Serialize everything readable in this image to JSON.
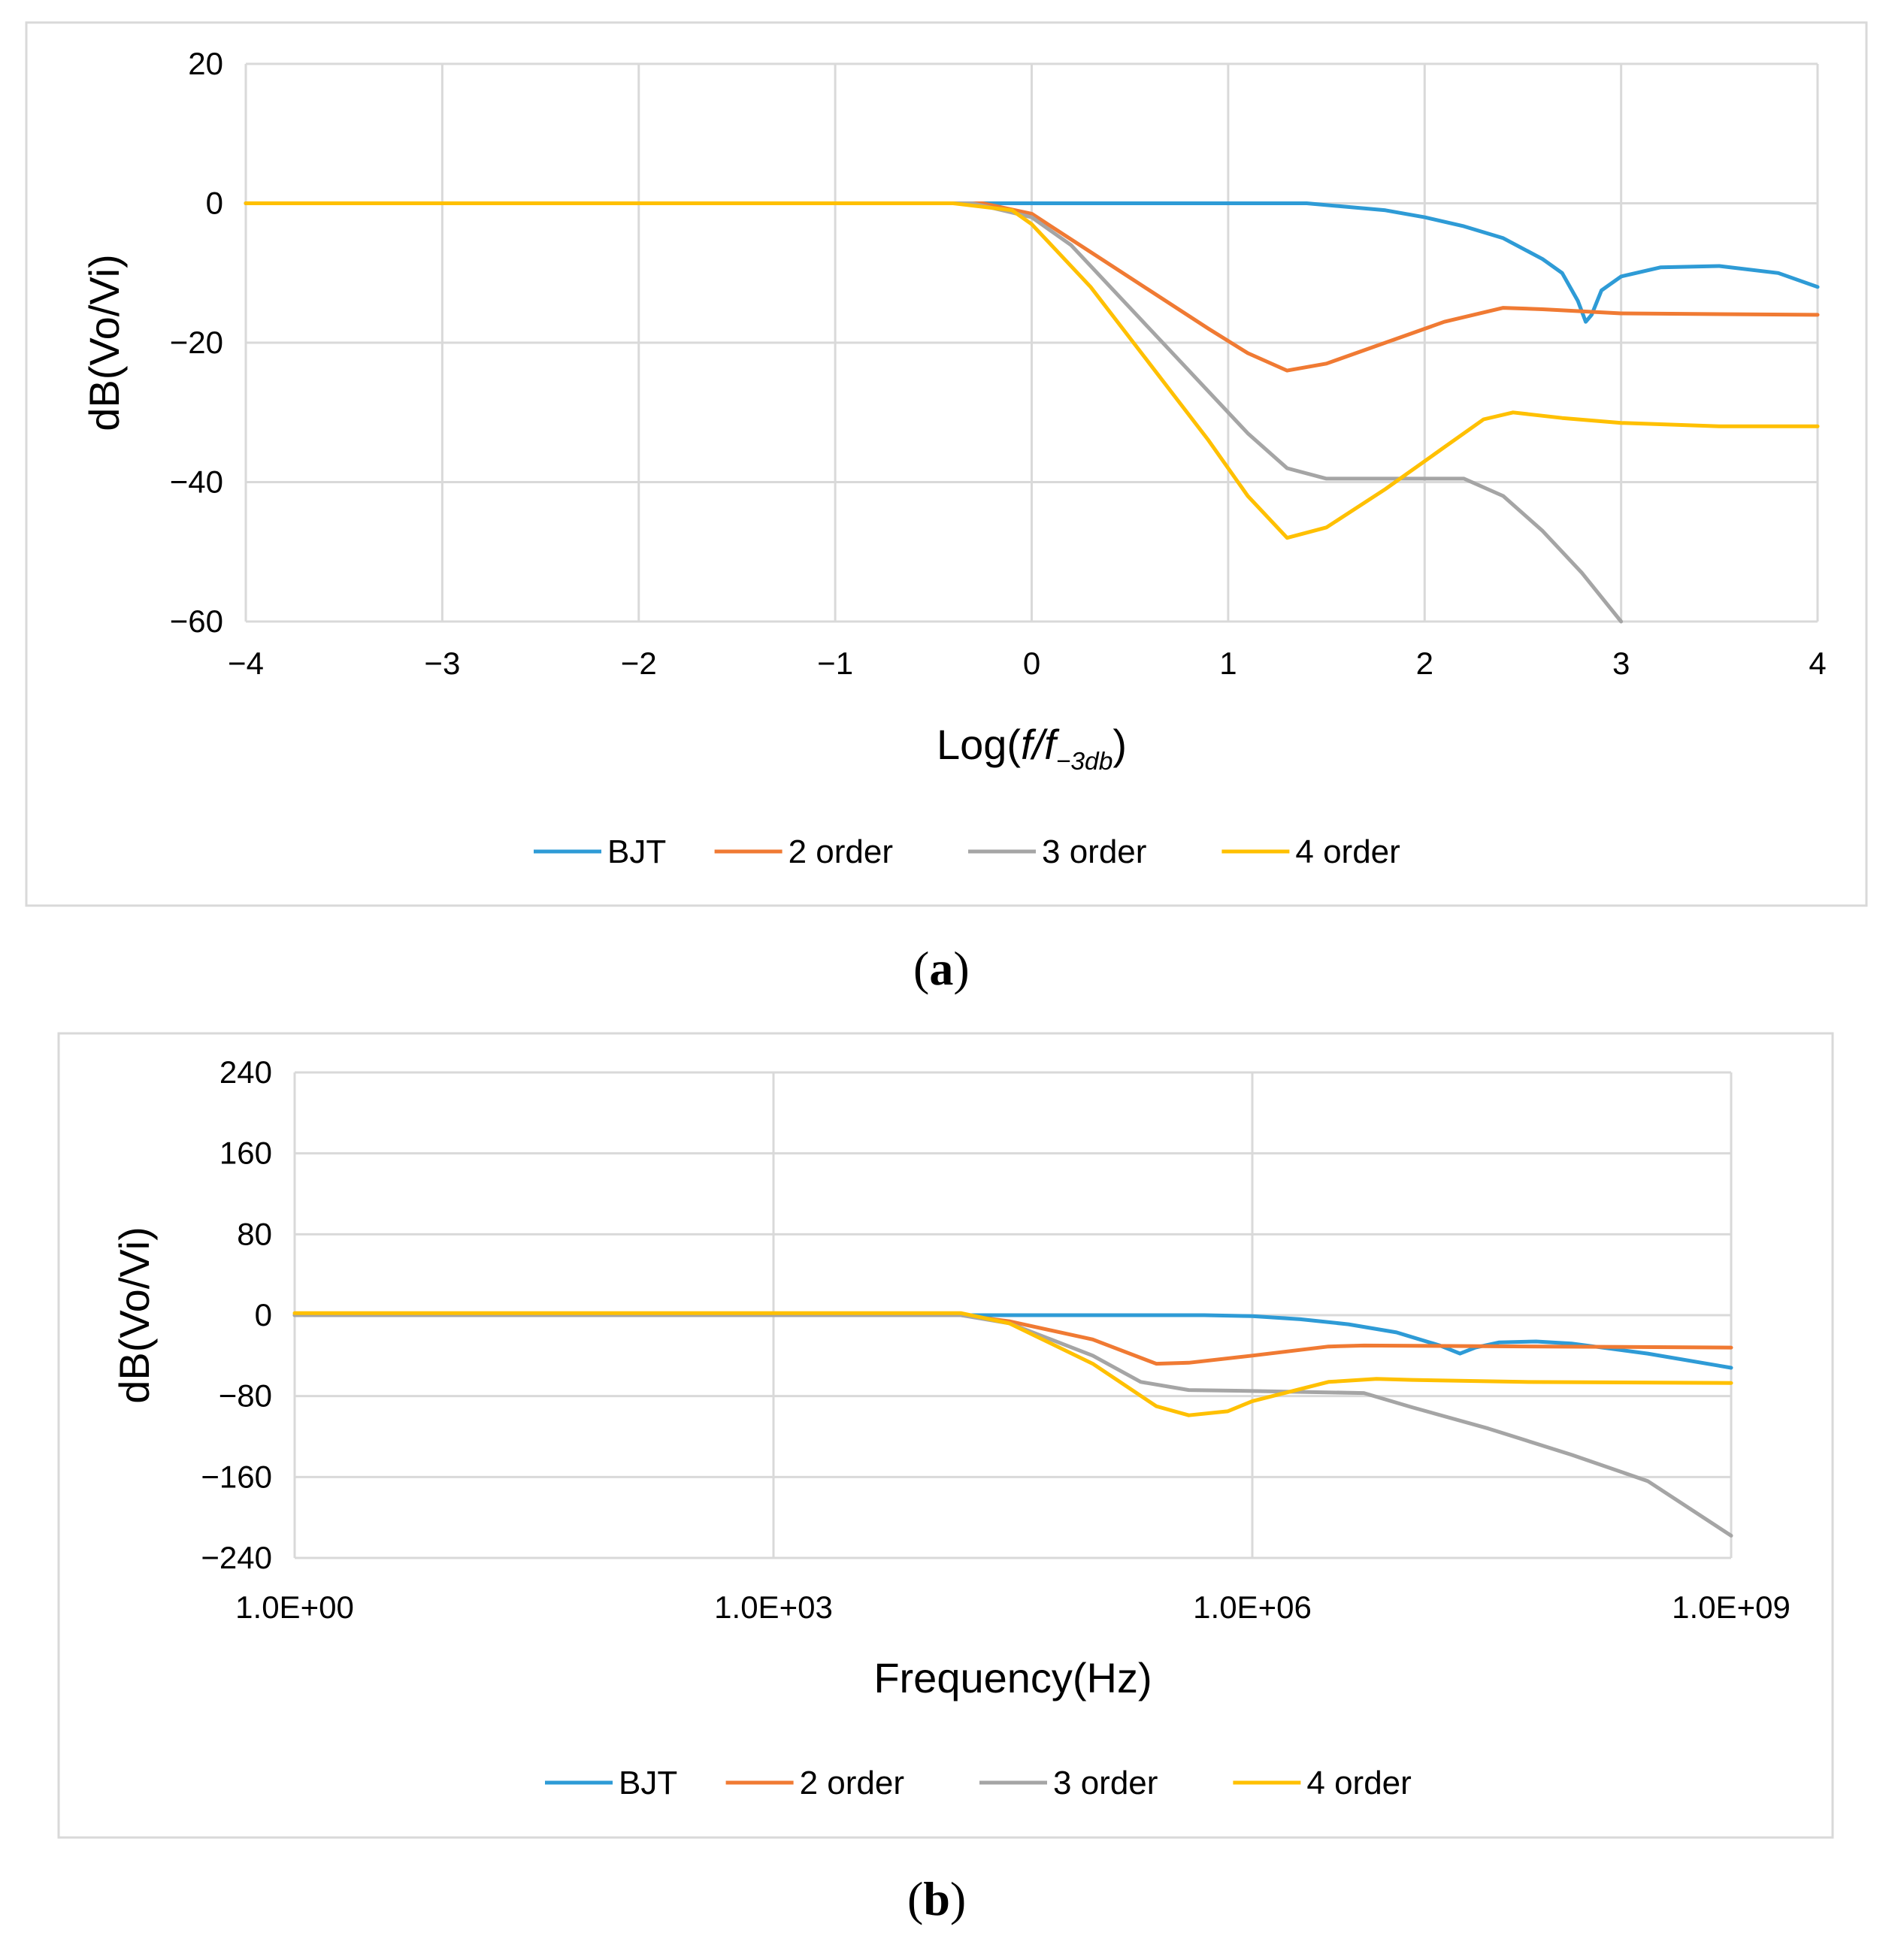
{
  "colors": {
    "bjt": "#2E9BD6",
    "order2": "#F07A33",
    "order3": "#A5A5A5",
    "order4": "#FFC000",
    "grid": "#D9D9D9",
    "frame": "#D9D9D9"
  },
  "captions": {
    "a": "a",
    "b": "b"
  },
  "chart_data": [
    {
      "id": "a",
      "type": "line",
      "title": "",
      "xlabel": {
        "main": "Log(",
        "f1": "f",
        "slash": "/",
        "f2": "f",
        "sub": "−3db",
        "close": ")"
      },
      "ylabel": "dB(Vo/Vi)",
      "xlim": [
        -4,
        4
      ],
      "ylim": [
        -60,
        20
      ],
      "xticks": [
        -4,
        -3,
        -2,
        -1,
        0,
        1,
        2,
        3,
        4
      ],
      "xtick_labels": [
        "−4",
        "−3",
        "−2",
        "−1",
        "0",
        "1",
        "2",
        "3",
        "4"
      ],
      "yticks": [
        20,
        0,
        -20,
        -40,
        -60
      ],
      "ytick_labels": [
        "20",
        "0",
        "−20",
        "−40",
        "−60"
      ],
      "grid": true,
      "legend": "bottom",
      "series": [
        {
          "name": "BJT",
          "color_key": "bjt",
          "points": [
            [
              -4,
              0
            ],
            [
              1.4,
              0
            ],
            [
              1.8,
              -1
            ],
            [
              2.0,
              -2
            ],
            [
              2.2,
              -3.3
            ],
            [
              2.4,
              -5
            ],
            [
              2.6,
              -8
            ],
            [
              2.7,
              -10
            ],
            [
              2.78,
              -14
            ],
            [
              2.82,
              -17
            ],
            [
              2.85,
              -16
            ],
            [
              2.9,
              -12.5
            ],
            [
              3.0,
              -10.5
            ],
            [
              3.2,
              -9.2
            ],
            [
              3.5,
              -9
            ],
            [
              3.8,
              -10
            ],
            [
              4,
              -12
            ]
          ]
        },
        {
          "name": "2 order",
          "color_key": "order2",
          "points": [
            [
              -4,
              0
            ],
            [
              -0.25,
              0
            ],
            [
              0,
              -1.5
            ],
            [
              0.3,
              -7
            ],
            [
              0.6,
              -12.5
            ],
            [
              0.9,
              -18
            ],
            [
              1.1,
              -21.5
            ],
            [
              1.3,
              -24
            ],
            [
              1.5,
              -23
            ],
            [
              1.8,
              -20
            ],
            [
              2.1,
              -17
            ],
            [
              2.4,
              -15
            ],
            [
              2.6,
              -15.2
            ],
            [
              3.0,
              -15.8
            ],
            [
              4,
              -16
            ]
          ]
        },
        {
          "name": "3 order",
          "color_key": "order3",
          "points": [
            [
              -4,
              0
            ],
            [
              -0.3,
              0
            ],
            [
              0,
              -2
            ],
            [
              0.2,
              -6
            ],
            [
              0.5,
              -15
            ],
            [
              0.8,
              -24
            ],
            [
              1.1,
              -33
            ],
            [
              1.3,
              -38
            ],
            [
              1.5,
              -39.5
            ],
            [
              2.2,
              -39.5
            ],
            [
              2.4,
              -42
            ],
            [
              2.6,
              -47
            ],
            [
              2.8,
              -53
            ],
            [
              3.0,
              -60
            ]
          ]
        },
        {
          "name": "4 order",
          "color_key": "order4",
          "points": [
            [
              -4,
              0
            ],
            [
              -0.4,
              0
            ],
            [
              -0.1,
              -1
            ],
            [
              0,
              -3
            ],
            [
              0.3,
              -12
            ],
            [
              0.6,
              -23
            ],
            [
              0.9,
              -34
            ],
            [
              1.1,
              -42
            ],
            [
              1.3,
              -48
            ],
            [
              1.5,
              -46.5
            ],
            [
              1.8,
              -41
            ],
            [
              2.1,
              -35
            ],
            [
              2.3,
              -31
            ],
            [
              2.45,
              -30
            ],
            [
              2.7,
              -30.8
            ],
            [
              3.0,
              -31.5
            ],
            [
              3.5,
              -32
            ],
            [
              4,
              -32
            ]
          ]
        }
      ]
    },
    {
      "id": "b",
      "type": "line",
      "title": "",
      "xlabel": "Frequency(Hz)",
      "ylabel": "dB(Vo/Vi)",
      "x_scale": "log",
      "xlim": [
        1,
        1000000000
      ],
      "ylim": [
        -240,
        240
      ],
      "xticks": [
        1,
        1000,
        1000000,
        1000000000
      ],
      "xtick_labels": [
        "1.0E+00",
        "1.0E+03",
        "1.0E+06",
        "1.0E+09"
      ],
      "yticks": [
        240,
        160,
        80,
        0,
        -80,
        -160,
        -240
      ],
      "ytick_labels": [
        "240",
        "160",
        "80",
        "0",
        "−80",
        "−160",
        "−240"
      ],
      "grid": true,
      "legend": "bottom",
      "series": [
        {
          "name": "BJT",
          "color_key": "bjt",
          "points": [
            [
              1,
              0
            ],
            [
              500000,
              0
            ],
            [
              1000000,
              -1
            ],
            [
              2000000,
              -4
            ],
            [
              4000000,
              -9
            ],
            [
              8000000,
              -17
            ],
            [
              15000000,
              -30
            ],
            [
              20000000,
              -38
            ],
            [
              25000000,
              -32
            ],
            [
              35000000,
              -27
            ],
            [
              60000000,
              -26
            ],
            [
              100000000,
              -28
            ],
            [
              300000000,
              -38
            ],
            [
              1000000000,
              -52
            ]
          ]
        },
        {
          "name": "2 order",
          "color_key": "order2",
          "points": [
            [
              1,
              0
            ],
            [
              15000,
              0
            ],
            [
              30000,
              -6
            ],
            [
              100000,
              -24
            ],
            [
              250000,
              -48
            ],
            [
              400000,
              -47
            ],
            [
              1000000,
              -40
            ],
            [
              3000000,
              -31
            ],
            [
              5000000,
              -30
            ],
            [
              1000000000,
              -32
            ]
          ]
        },
        {
          "name": "3 order",
          "color_key": "order3",
          "points": [
            [
              1,
              0
            ],
            [
              15000,
              0
            ],
            [
              30000,
              -8
            ],
            [
              100000,
              -40
            ],
            [
              200000,
              -66
            ],
            [
              400000,
              -74
            ],
            [
              1000000,
              -75
            ],
            [
              5000000,
              -77
            ],
            [
              10000000,
              -91
            ],
            [
              30000000,
              -112
            ],
            [
              100000000,
              -138
            ],
            [
              300000000,
              -164
            ],
            [
              1000000000,
              -218
            ]
          ]
        },
        {
          "name": "4 order",
          "color_key": "order4",
          "points": [
            [
              1,
              2
            ],
            [
              15000,
              2
            ],
            [
              30000,
              -8
            ],
            [
              100000,
              -48
            ],
            [
              250000,
              -90
            ],
            [
              400000,
              -99
            ],
            [
              700000,
              -95
            ],
            [
              1000000,
              -85
            ],
            [
              3000000,
              -66
            ],
            [
              6000000,
              -63
            ],
            [
              10000000,
              -64
            ],
            [
              50000000,
              -66
            ],
            [
              1000000000,
              -67
            ]
          ]
        }
      ]
    }
  ]
}
